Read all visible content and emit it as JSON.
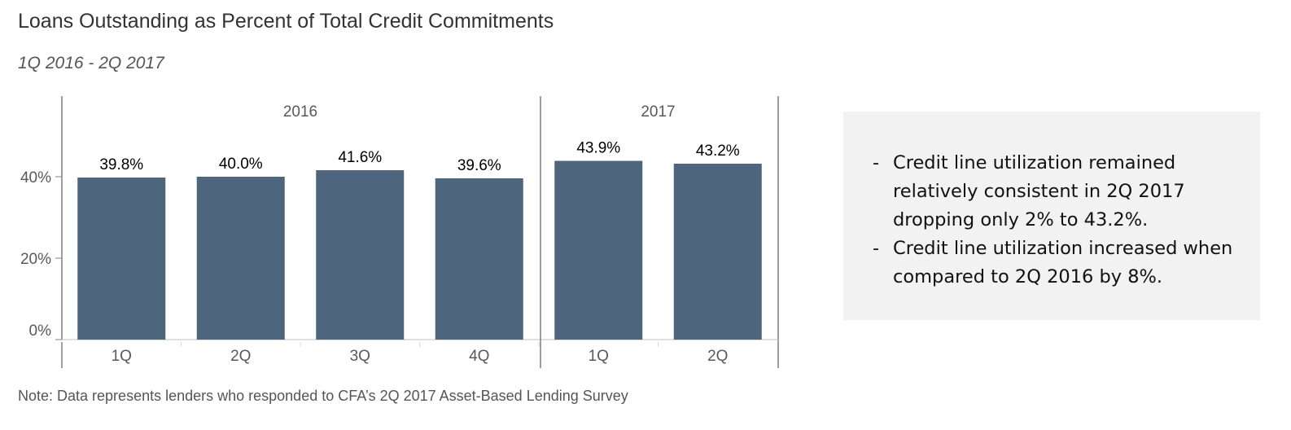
{
  "title": "Loans Outstanding as Percent of Total Credit Commitments",
  "subtitle": "1Q 2016 - 2Q 2017",
  "note": "Note: Data represents lenders who responded to CFA’s 2Q 2017 Asset-Based Lending Survey",
  "callout": {
    "bullets": [
      "Credit line utilization remained relatively consistent in 2Q 2017 dropping only 2% to 43.2%.",
      "Credit line utilization increased when compared to 2Q 2016 by 8%."
    ]
  },
  "chart_data": {
    "type": "bar",
    "groups": [
      {
        "label": "2016",
        "categories": [
          "1Q",
          "2Q",
          "3Q",
          "4Q"
        ]
      },
      {
        "label": "2017",
        "categories": [
          "1Q",
          "2Q"
        ]
      }
    ],
    "categories": [
      "1Q",
      "2Q",
      "3Q",
      "4Q",
      "1Q",
      "2Q"
    ],
    "values": [
      39.8,
      40.0,
      41.6,
      39.6,
      43.9,
      43.2
    ],
    "data_labels": [
      "39.8%",
      "40.0%",
      "41.6%",
      "39.6%",
      "43.9%",
      "43.2%"
    ],
    "y_ticks": [
      0,
      20,
      40
    ],
    "y_tick_labels": [
      "0%",
      "20%",
      "40%"
    ],
    "ylim": [
      0,
      60
    ],
    "bar_color": "#4e667d",
    "grid": false
  }
}
